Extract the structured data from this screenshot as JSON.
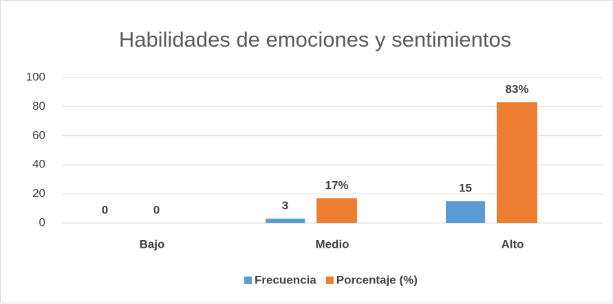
{
  "chart_data": {
    "type": "bar",
    "title": "Habilidades de emociones y sentimientos",
    "categories": [
      "Bajo",
      "Medio",
      "Alto"
    ],
    "series": [
      {
        "name": "Frecuencia",
        "color": "#5b9bd5",
        "values": [
          0,
          3,
          15
        ]
      },
      {
        "name": "Porcentaje (%)",
        "color": "#ed7d31",
        "values": [
          0,
          17,
          83
        ],
        "value_labels": [
          "0",
          "17%",
          "83%"
        ]
      }
    ],
    "ylim": [
      0,
      100
    ],
    "yticks": [
      0,
      20,
      40,
      60,
      80,
      100
    ],
    "grid": true,
    "legend": "bottom"
  }
}
